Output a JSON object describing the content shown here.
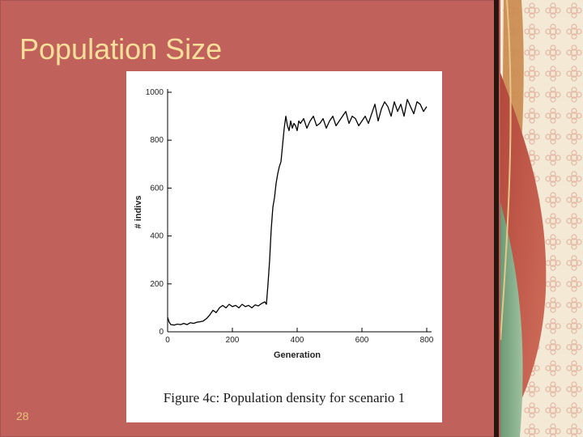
{
  "slide": {
    "title": "Population Size",
    "page_number": "28"
  },
  "figure": {
    "caption": "Figure 4c: Population density for scenario 1"
  },
  "chart_data": {
    "type": "line",
    "title": "",
    "xlabel": "Generation",
    "ylabel": "# indivs",
    "xlim": [
      0,
      800
    ],
    "ylim": [
      0,
      1000
    ],
    "x_ticks": [
      0,
      200,
      400,
      600,
      800
    ],
    "y_ticks": [
      0,
      200,
      400,
      600,
      800,
      1000
    ],
    "grid": false,
    "series": [
      {
        "color": "#000000",
        "x": [
          0,
          5,
          10,
          20,
          30,
          40,
          50,
          60,
          70,
          80,
          90,
          100,
          110,
          120,
          130,
          140,
          150,
          160,
          170,
          180,
          190,
          200,
          210,
          220,
          230,
          240,
          250,
          260,
          270,
          280,
          290,
          300,
          305,
          310,
          315,
          318,
          320,
          325,
          330,
          335,
          340,
          345,
          350,
          355,
          360,
          365,
          370,
          375,
          380,
          385,
          390,
          395,
          400,
          405,
          410,
          420,
          430,
          440,
          450,
          460,
          470,
          480,
          490,
          500,
          510,
          520,
          530,
          540,
          550,
          560,
          570,
          580,
          590,
          600,
          610,
          620,
          630,
          640,
          650,
          660,
          670,
          680,
          690,
          700,
          710,
          720,
          730,
          740,
          750,
          760,
          770,
          780,
          790,
          800
        ],
        "values": [
          60,
          40,
          30,
          28,
          32,
          30,
          35,
          30,
          38,
          35,
          40,
          42,
          45,
          55,
          70,
          90,
          80,
          100,
          110,
          100,
          115,
          105,
          110,
          100,
          115,
          105,
          110,
          100,
          112,
          108,
          118,
          125,
          115,
          200,
          300,
          380,
          430,
          520,
          560,
          620,
          660,
          690,
          710,
          780,
          850,
          900,
          860,
          840,
          880,
          850,
          870,
          860,
          840,
          880,
          870,
          890,
          850,
          880,
          900,
          860,
          870,
          890,
          850,
          880,
          900,
          860,
          880,
          900,
          920,
          870,
          900,
          890,
          860,
          880,
          900,
          870,
          910,
          950,
          880,
          930,
          960,
          940,
          900,
          960,
          920,
          950,
          900,
          970,
          940,
          910,
          960,
          950,
          920,
          940
        ]
      }
    ]
  }
}
